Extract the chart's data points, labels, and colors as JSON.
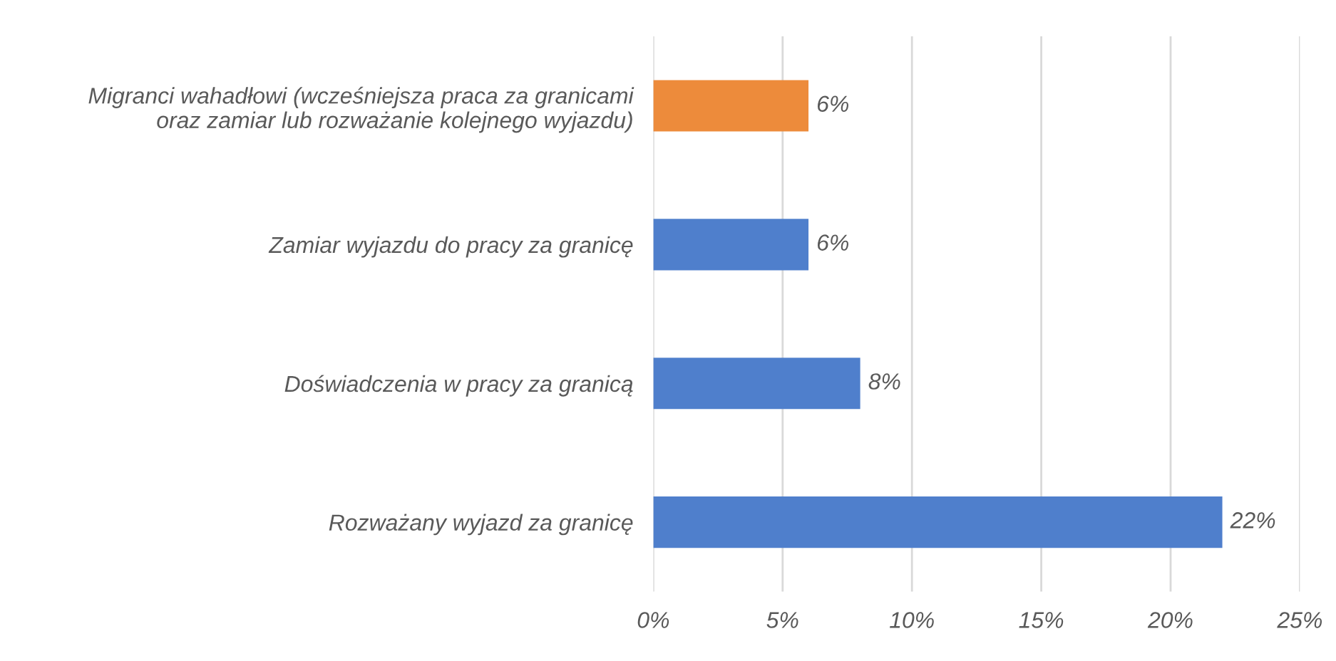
{
  "chart_data": {
    "type": "bar",
    "orientation": "horizontal",
    "categories": [
      "Migranci wahadłowi (wcześniejsza praca za granicami oraz zamiar lub rozważanie kolejnego wyjazdu)",
      "Zamiar wyjazdu do pracy za granicę",
      "Doświadczenia w pracy za granicą",
      "Rozważany wyjazd za granicę"
    ],
    "values": [
      6,
      6,
      8,
      22
    ],
    "value_labels": [
      "6%",
      "6%",
      "8%",
      "22%"
    ],
    "colors": [
      "#ed8b3b",
      "#4f7fcc",
      "#4f7fcc",
      "#4f7fcc"
    ],
    "xlim": [
      0,
      25
    ],
    "xticks": [
      {
        "value": 0,
        "label": "0%"
      },
      {
        "value": 5,
        "label": "5%"
      },
      {
        "value": 10,
        "label": "10%"
      },
      {
        "value": 15,
        "label": "15%"
      },
      {
        "value": 20,
        "label": "20%"
      },
      {
        "value": 25,
        "label": "25%"
      }
    ],
    "grid": "x",
    "legend": false
  }
}
